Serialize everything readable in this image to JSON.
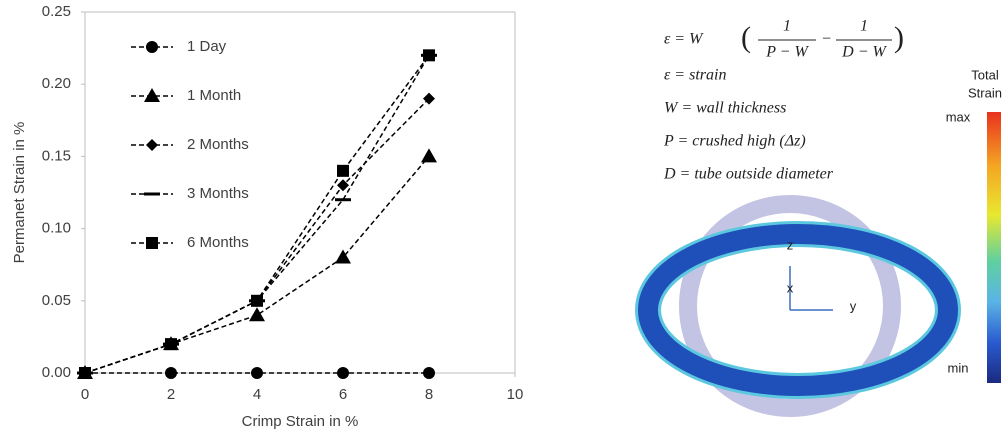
{
  "chart_data": {
    "type": "line",
    "x_label": "Crimp Strain in %",
    "y_label": "Permanet Strain in %",
    "x": [
      0,
      2,
      4,
      6,
      8
    ],
    "series": [
      {
        "name": "1 Day",
        "color": "#000000",
        "marker": "circle",
        "values": [
          0,
          0,
          0,
          0,
          0
        ]
      },
      {
        "name": "1 Month",
        "color": "#000000",
        "marker": "triangle",
        "values": [
          0,
          0.02,
          0.04,
          0.08,
          0.15
        ]
      },
      {
        "name": "2 Months",
        "color": "#000000",
        "marker": "diamond",
        "values": [
          0,
          0.02,
          0.05,
          0.13,
          0.19
        ]
      },
      {
        "name": "3 Months",
        "color": "#000000",
        "marker": "dash",
        "values": [
          0,
          0.02,
          0.05,
          0.12,
          0.22
        ]
      },
      {
        "name": "6 Months",
        "color": "#000000",
        "marker": "square",
        "values": [
          0,
          0.02,
          0.05,
          0.14,
          0.22
        ]
      }
    ],
    "xlim": [
      0,
      10
    ],
    "xticks": [
      0,
      2,
      4,
      6,
      8,
      10
    ],
    "ylim": [
      0,
      0.25
    ],
    "yticks": [
      {
        "value": 0,
        "label": "0.00"
      },
      0.05,
      {
        "value": 0.1,
        "label": "0.10"
      },
      0.15,
      {
        "value": 0.2,
        "label": "0.20"
      },
      0.25
    ],
    "grid": false,
    "legend": "upper-left"
  },
  "diagram": {
    "formula": {
      "lhs": "ε = W",
      "num1": "1",
      "den1": "P − W",
      "minus": "−",
      "num2": "1",
      "den2": "D − W"
    },
    "definitions": [
      "ε = strain",
      "W = wall thickness",
      "P = crushed high (Δz)",
      "D = tube outside diameter"
    ],
    "colorbar": {
      "title": [
        "Total",
        "Strain"
      ],
      "max": "max",
      "min": "min"
    },
    "axes": {
      "z": "z",
      "x": "x",
      "y": "y"
    }
  }
}
